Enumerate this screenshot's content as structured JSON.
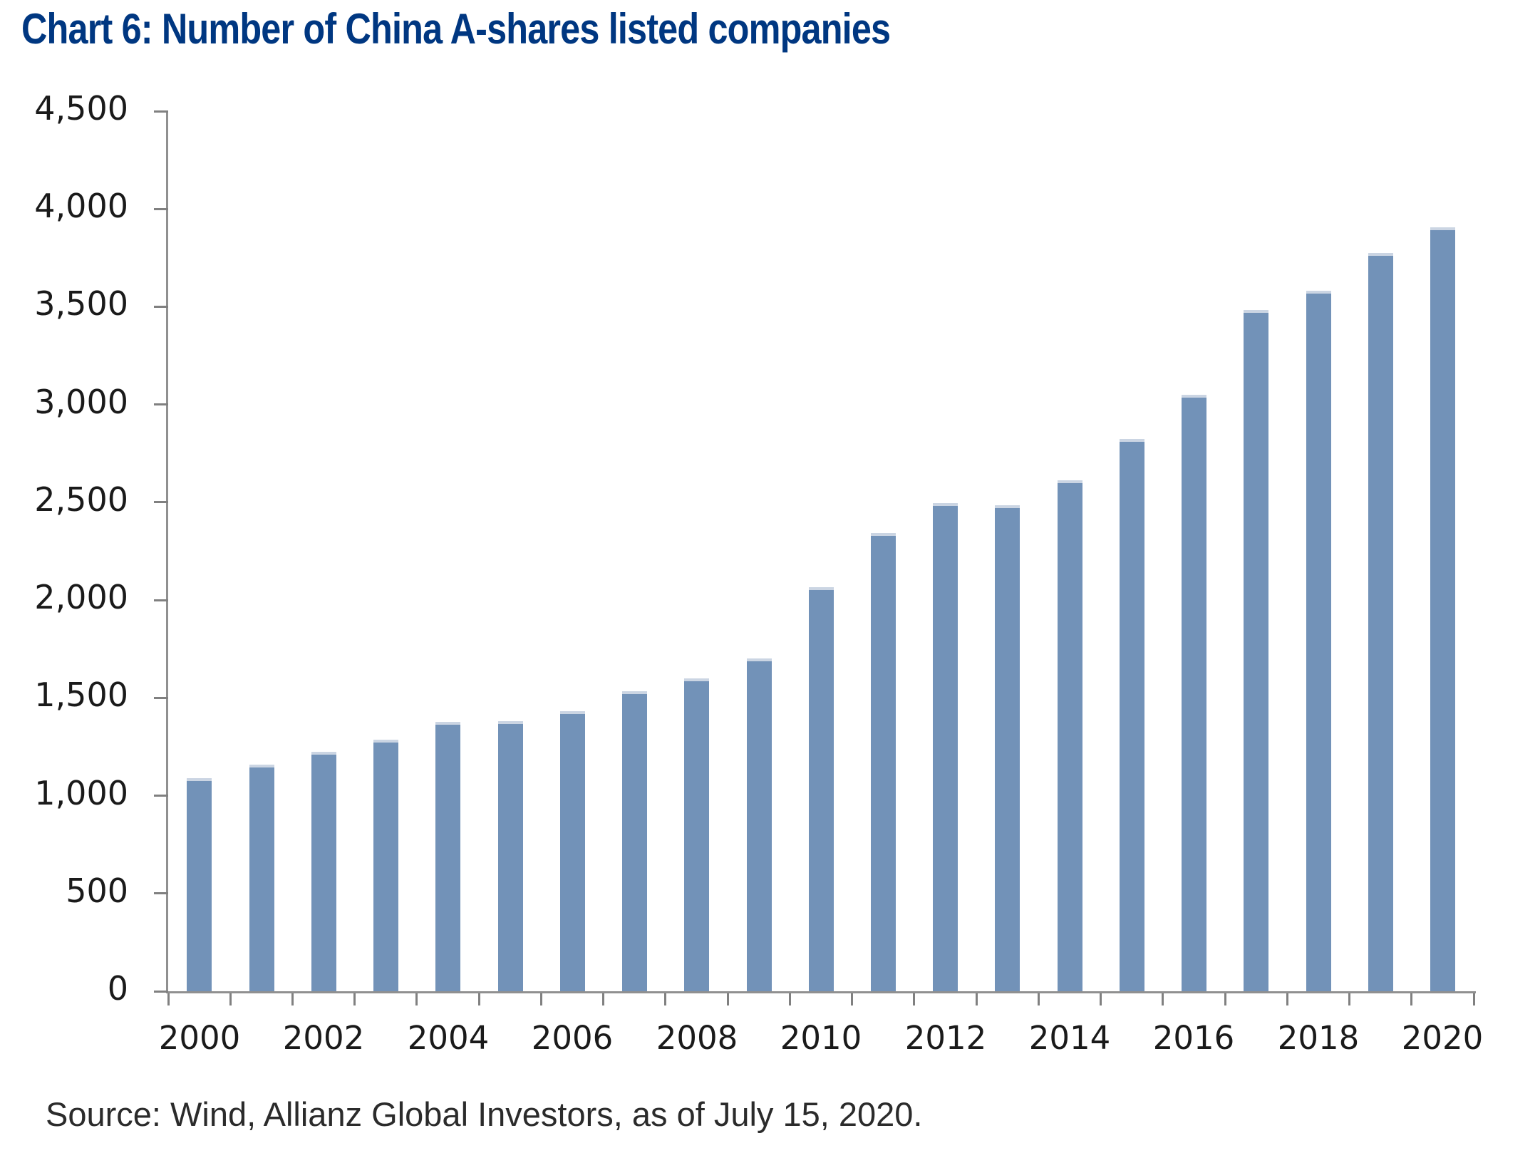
{
  "page": {
    "background": "#FFFFFF"
  },
  "header": {
    "title": "Chart 6: Number of China A-shares listed companies"
  },
  "footer": {
    "source": "Source: Wind, Allianz Global Investors, as of July 15, 2020."
  },
  "colors": {
    "title_text": "#003781",
    "bar_fill": "#7292B8",
    "bar_top_edge": "#CBD5E3",
    "axis_line": "#909090",
    "tick_mark": "#808080",
    "axis_label_text": "#1A1A1A",
    "source_text": "#2B2B2B"
  },
  "chart_data": {
    "type": "bar",
    "title": "Chart 6: Number of China A-shares listed companies",
    "categories": [
      "2000",
      "2001",
      "2002",
      "2003",
      "2004",
      "2005",
      "2006",
      "2007",
      "2008",
      "2009",
      "2010",
      "2011",
      "2012",
      "2013",
      "2014",
      "2015",
      "2016",
      "2017",
      "2018",
      "2019",
      "2020"
    ],
    "values": [
      1090,
      1160,
      1225,
      1285,
      1378,
      1380,
      1432,
      1535,
      1600,
      1700,
      2065,
      2342,
      2495,
      2485,
      2613,
      2825,
      3048,
      3485,
      3580,
      3775,
      3905
    ],
    "xlabel": "",
    "ylabel": "",
    "ylim": [
      0,
      4500
    ],
    "ytick_step": 500,
    "ytick_labels": [
      "0",
      "500",
      "1,000",
      "1,500",
      "2,000",
      "2,500",
      "3,000",
      "3,500",
      "4,000",
      "4,500"
    ],
    "xtick_labels": [
      "2000",
      "2002",
      "2004",
      "2006",
      "2008",
      "2010",
      "2012",
      "2014",
      "2016",
      "2018",
      "2020"
    ],
    "grid": false,
    "legend": "none",
    "bar_color": "#7292B8",
    "source": "Source: Wind, Allianz Global Investors, as of July 15, 2020."
  }
}
